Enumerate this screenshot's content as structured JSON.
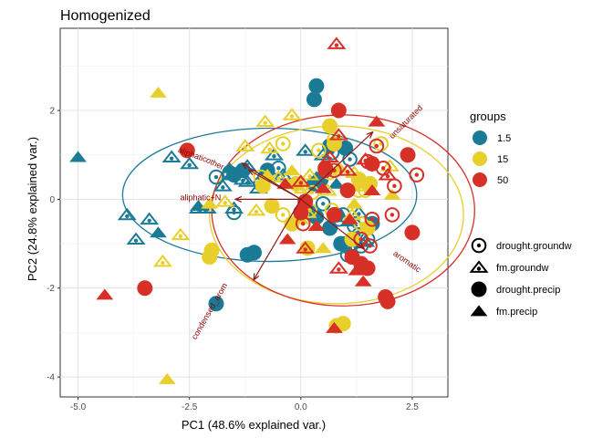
{
  "chart_data": {
    "type": "scatter",
    "title": "Homogenized",
    "xlabel": "PC1 (48.6% explained var.)",
    "ylabel": "PC2 (24.8% explained var.)",
    "xlim": [
      -5.4,
      3.3
    ],
    "ylim": [
      -4.45,
      3.85
    ],
    "x_ticks": [
      -5.0,
      -2.5,
      0.0,
      2.5
    ],
    "x_tick_labels": [
      "-5.0",
      "-2.5",
      "0.0",
      "2.5"
    ],
    "y_ticks": [
      -4,
      -2,
      0,
      2
    ],
    "y_tick_labels": [
      "-4",
      "-2",
      "0",
      "2"
    ],
    "grid": true,
    "legend_position": "right",
    "colors": {
      "1.5": "#1b7a96",
      "15": "#e8cf2b",
      "50": "#d73027",
      "loading": "#8b1a1a"
    },
    "legend_groups": {
      "title": "groups",
      "items": [
        {
          "label": "1.5",
          "color": "#1b7a96"
        },
        {
          "label": "15",
          "color": "#e8cf2b"
        },
        {
          "label": "50",
          "color": "#d73027"
        }
      ]
    },
    "legend_shapes": [
      {
        "label": "drought.groundw",
        "shape": "circle-open"
      },
      {
        "label": "fm.groundw",
        "shape": "triangle-open"
      },
      {
        "label": "drought.precip",
        "shape": "circle-filled"
      },
      {
        "label": "fm.precip",
        "shape": "triangle-filled"
      }
    ],
    "ellipses": [
      {
        "group": "1.5",
        "cx": -0.7,
        "cy": 0.1,
        "rx": 3.3,
        "ry": 1.5,
        "angle": 0
      },
      {
        "group": "15",
        "cx": 0.8,
        "cy": -0.35,
        "rx": 2.85,
        "ry": 2.0,
        "angle": 0
      },
      {
        "group": "50",
        "cx": 0.95,
        "cy": -0.25,
        "rx": 2.95,
        "ry": 2.15,
        "angle": 0
      }
    ],
    "loadings": [
      {
        "label": "unsaturated",
        "x": 1.6,
        "y": 1.5,
        "label_x": 2.4,
        "label_y": 1.7,
        "angle": -45
      },
      {
        "label": "aromatic",
        "x": 1.4,
        "y": -1.1,
        "label_x": 2.35,
        "label_y": -1.45,
        "angle": 35
      },
      {
        "label": "condensed_arom",
        "x": -1.05,
        "y": -1.8,
        "label_x": -2.0,
        "label_y": -2.55,
        "angle": -60
      },
      {
        "label": "aliphatic+N",
        "x": -1.45,
        "y": 0.0,
        "label_x": -2.25,
        "label_y": -0.02,
        "angle": 0
      },
      {
        "label": "other",
        "x": -1.15,
        "y": 0.65,
        "label_x": -1.95,
        "label_y": 0.75,
        "angle": 25
      },
      {
        "label": "aliphatic",
        "x": -1.3,
        "y": 0.8,
        "label_x": -2.45,
        "label_y": 0.95,
        "angle": 20
      }
    ],
    "series": [
      {
        "name": "1.5",
        "color": "#1b7a96",
        "shape": "circle-open",
        "points": [
          [
            -1.6,
            0.6
          ],
          [
            -1.9,
            0.5
          ],
          [
            -1.5,
            -0.3
          ],
          [
            -0.9,
            0.35
          ],
          [
            -0.5,
            0.7
          ],
          [
            0.2,
            -0.3
          ],
          [
            0.5,
            -0.1
          ],
          [
            0.7,
            1.05
          ],
          [
            1.1,
            0.9
          ],
          [
            1.2,
            -0.6
          ],
          [
            1.0,
            -1.0
          ],
          [
            1.1,
            -1.1
          ],
          [
            1.3,
            -0.8
          ],
          [
            0.85,
            -0.45
          ],
          [
            1.05,
            -1.25
          ],
          [
            1.35,
            -1.05
          ],
          [
            1.5,
            -0.9
          ],
          [
            0.95,
            -0.35
          ]
        ]
      },
      {
        "name": "1.5",
        "color": "#1b7a96",
        "shape": "triangle-open",
        "points": [
          [
            -3.9,
            -0.35
          ],
          [
            -3.4,
            -0.45
          ],
          [
            -3.7,
            -0.9
          ],
          [
            -2.9,
            0.95
          ],
          [
            -2.1,
            -0.2
          ],
          [
            -1.5,
            -0.2
          ],
          [
            -1.2,
            0.75
          ],
          [
            -0.6,
            1.0
          ],
          [
            -0.4,
            0.55
          ],
          [
            0.1,
            1.1
          ],
          [
            0.5,
            1.0
          ],
          [
            -1.2,
            0.4
          ],
          [
            -0.95,
            0.25
          ],
          [
            -1.3,
            0.45
          ],
          [
            -2.5,
            0.8
          ],
          [
            -1.75,
            0.3
          ],
          [
            1.3,
            -0.3
          ],
          [
            -2.3,
            -0.2
          ],
          [
            -1.55,
            0.55
          ],
          [
            1.45,
            -0.95
          ]
        ]
      },
      {
        "name": "1.5",
        "color": "#1b7a96",
        "shape": "circle-filled",
        "points": [
          [
            0.35,
            2.55
          ],
          [
            0.3,
            2.25
          ],
          [
            1.0,
            1.15
          ],
          [
            0.65,
            1.2
          ],
          [
            -1.5,
            0.55
          ],
          [
            -1.3,
            0.65
          ],
          [
            -0.75,
            0.65
          ],
          [
            -0.8,
            0.5
          ],
          [
            0.3,
            0.35
          ],
          [
            0.45,
            0.45
          ],
          [
            0.1,
            -0.2
          ],
          [
            0.35,
            -0.4
          ],
          [
            0.8,
            -0.35
          ],
          [
            1.6,
            -0.55
          ],
          [
            -1.05,
            -1.2
          ],
          [
            -1.2,
            -1.25
          ],
          [
            -1.9,
            -2.35
          ],
          [
            0.9,
            -1.0
          ],
          [
            0.65,
            -0.65
          ]
        ]
      },
      {
        "name": "1.5",
        "color": "#1b7a96",
        "shape": "triangle-filled",
        "points": [
          [
            -5.0,
            0.95
          ],
          [
            -3.2,
            -0.75
          ],
          [
            -2.3,
            -0.15
          ],
          [
            -1.6,
            0.7
          ],
          [
            0.35,
            0.5
          ],
          [
            1.1,
            -0.5
          ],
          [
            0.8,
            0.35
          ]
        ]
      },
      {
        "name": "15",
        "color": "#e8cf2b",
        "shape": "circle-open",
        "points": [
          [
            -0.4,
            1.25
          ],
          [
            0.4,
            1.1
          ],
          [
            0.75,
            1.35
          ],
          [
            1.8,
            1.25
          ],
          [
            1.3,
            0.2
          ],
          [
            0.65,
            0.6
          ],
          [
            0.2,
            -0.25
          ],
          [
            1.45,
            0.2
          ],
          [
            0.25,
            0.15
          ],
          [
            -0.9,
            0.5
          ],
          [
            -0.4,
            -0.35
          ],
          [
            1.35,
            -0.55
          ],
          [
            0.7,
            -0.25
          ]
        ]
      },
      {
        "name": "15",
        "color": "#e8cf2b",
        "shape": "triangle-open",
        "points": [
          [
            -0.8,
            1.75
          ],
          [
            -0.2,
            1.9
          ],
          [
            -0.5,
            0.5
          ],
          [
            -0.3,
            0.35
          ],
          [
            0.05,
            0.25
          ],
          [
            -1.0,
            -0.25
          ],
          [
            -1.7,
            -0.05
          ],
          [
            -2.7,
            -0.8
          ],
          [
            -3.1,
            -1.4
          ],
          [
            0.2,
            0.55
          ],
          [
            0.9,
            0.65
          ],
          [
            1.4,
            0.3
          ],
          [
            1.2,
            0.6
          ],
          [
            2.0,
            0.75
          ],
          [
            0.6,
            0.2
          ],
          [
            -1.25,
            1.2
          ],
          [
            -0.7,
            1.15
          ],
          [
            0.15,
            -0.3
          ],
          [
            1.15,
            -0.35
          ]
        ]
      },
      {
        "name": "15",
        "color": "#e8cf2b",
        "shape": "circle-filled",
        "points": [
          [
            -2.0,
            -1.15
          ],
          [
            -2.05,
            -1.3
          ],
          [
            -0.85,
            0.3
          ],
          [
            -0.65,
            -0.15
          ],
          [
            0.65,
            1.65
          ],
          [
            0.75,
            1.25
          ],
          [
            1.55,
            0.35
          ],
          [
            1.3,
            0.45
          ],
          [
            0.8,
            -2.85
          ],
          [
            0.95,
            -2.8
          ],
          [
            -0.2,
            -0.55
          ],
          [
            1.15,
            -0.9
          ],
          [
            1.5,
            -0.65
          ],
          [
            0.15,
            -1.1
          ],
          [
            -0.1,
            0.35
          ]
        ]
      },
      {
        "name": "15",
        "color": "#e8cf2b",
        "shape": "triangle-filled",
        "points": [
          [
            -3.2,
            2.4
          ],
          [
            -3.0,
            -4.05
          ],
          [
            1.3,
            0.35
          ],
          [
            2.05,
            0.1
          ],
          [
            0.85,
            0.7
          ],
          [
            0.0,
            -0.45
          ],
          [
            -0.75,
            0.55
          ],
          [
            -2.05,
            -0.1
          ],
          [
            -0.2,
            0.65
          ],
          [
            0.5,
            -1.1
          ],
          [
            1.2,
            -0.1
          ]
        ]
      },
      {
        "name": "50",
        "color": "#d73027",
        "shape": "circle-open",
        "points": [
          [
            1.7,
            1.2
          ],
          [
            1.85,
            0.7
          ],
          [
            2.6,
            0.55
          ],
          [
            2.1,
            0.3
          ],
          [
            1.5,
            0.85
          ],
          [
            0.55,
            0.65
          ],
          [
            0.75,
            0.65
          ],
          [
            2.05,
            -0.35
          ],
          [
            1.6,
            -0.45
          ],
          [
            0.05,
            -0.55
          ],
          [
            1.35,
            -0.9
          ],
          [
            1.55,
            -1.05
          ]
        ]
      },
      {
        "name": "50",
        "color": "#d73027",
        "shape": "triangle-open",
        "points": [
          [
            0.8,
            3.5
          ],
          [
            1.45,
            0.9
          ],
          [
            0.85,
            1.45
          ],
          [
            1.95,
            0.55
          ],
          [
            0.1,
            -1.1
          ],
          [
            0.65,
            0.95
          ],
          [
            1.05,
            0.65
          ],
          [
            0.85,
            -1.55
          ],
          [
            0.0,
            0.4
          ]
        ]
      },
      {
        "name": "50",
        "color": "#d73027",
        "shape": "circle-filled",
        "points": [
          [
            0.85,
            2.0
          ],
          [
            2.4,
            1.0
          ],
          [
            -2.55,
            1.1
          ],
          [
            -3.5,
            -2.0
          ],
          [
            0.1,
            -0.05
          ],
          [
            0.75,
            -0.35
          ],
          [
            1.05,
            0.2
          ],
          [
            1.6,
            0.8
          ],
          [
            1.9,
            -2.2
          ],
          [
            1.95,
            -2.3
          ],
          [
            2.5,
            -0.75
          ],
          [
            1.35,
            -1.45
          ],
          [
            1.5,
            -1.55
          ],
          [
            0.0,
            -0.3
          ],
          [
            0.55,
            0.7
          ],
          [
            1.15,
            -1.3
          ]
        ]
      },
      {
        "name": "50",
        "color": "#d73027",
        "shape": "triangle-filled",
        "points": [
          [
            1.7,
            1.75
          ],
          [
            -4.4,
            -2.15
          ],
          [
            -0.3,
            -0.9
          ],
          [
            -0.35,
            0.35
          ],
          [
            0.35,
            -0.6
          ],
          [
            0.75,
            -2.9
          ],
          [
            1.35,
            -1.55
          ],
          [
            1.4,
            -1.85
          ],
          [
            1.25,
            -1.6
          ],
          [
            0.5,
            0.25
          ],
          [
            1.1,
            -0.45
          ],
          [
            1.6,
            0.2
          ]
        ]
      }
    ]
  }
}
